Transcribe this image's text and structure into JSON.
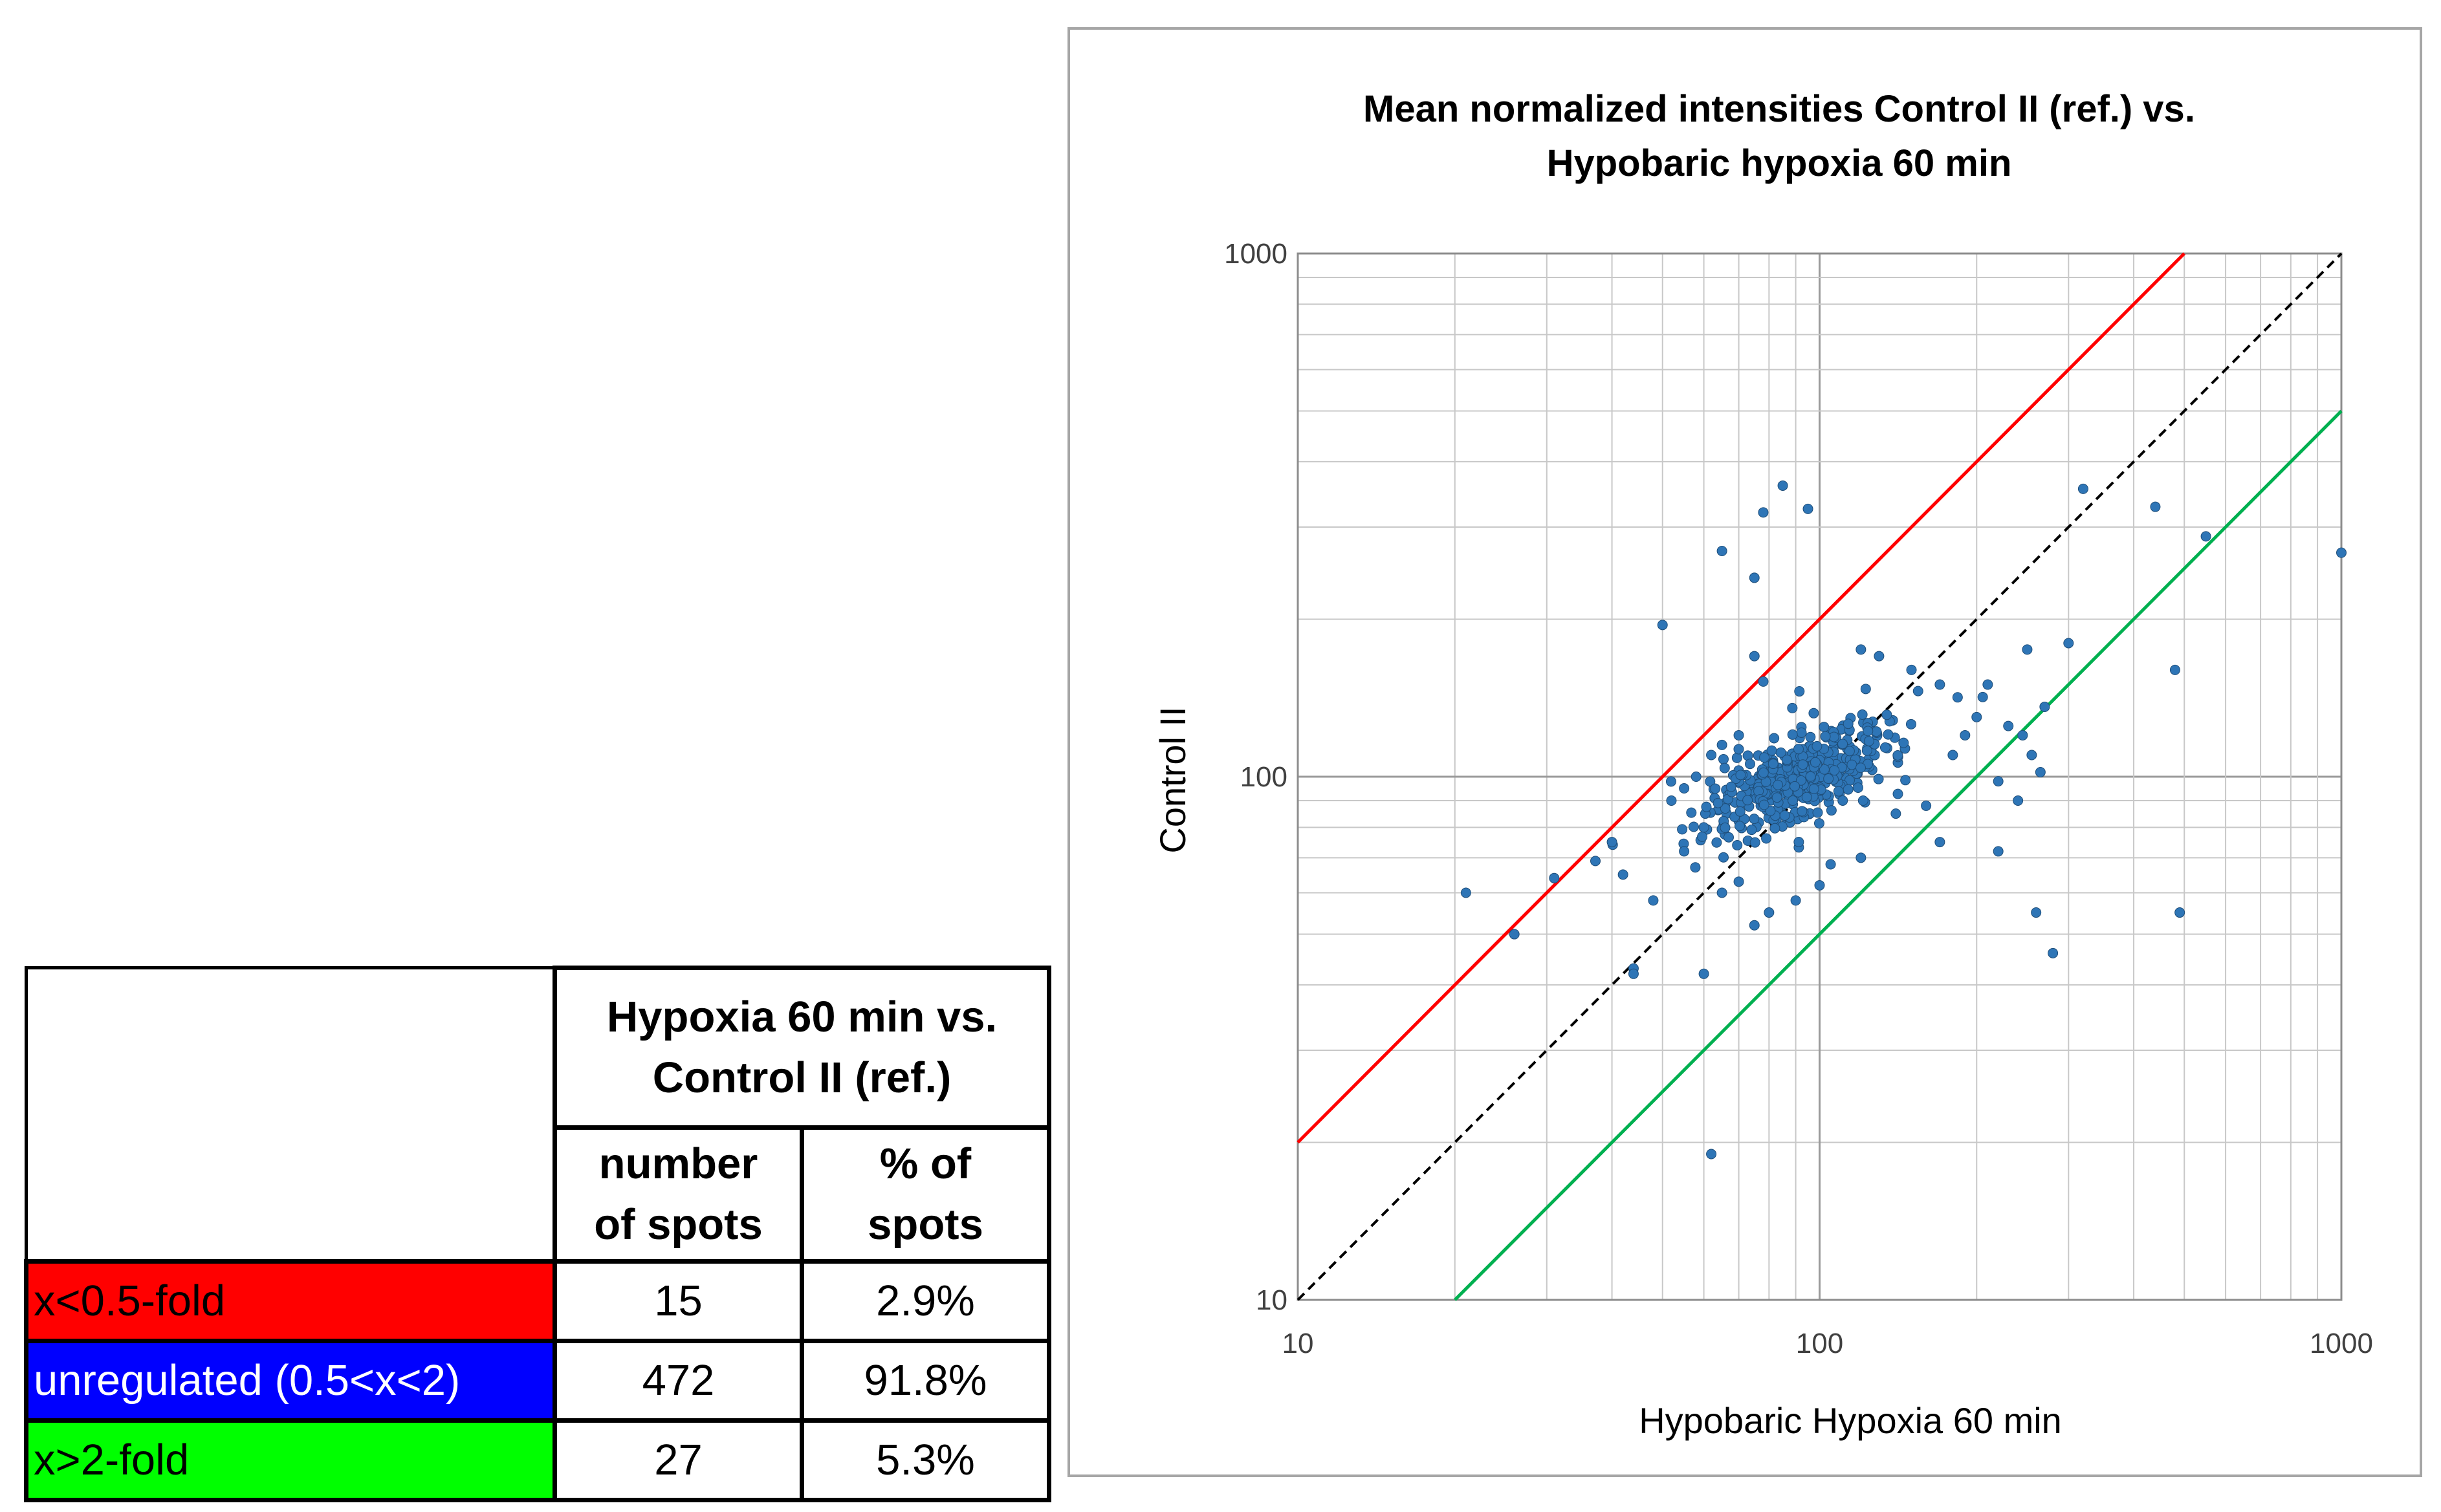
{
  "table": {
    "group_header": "Hypoxia 60 min vs. Control II (ref.)",
    "group_header_lines": [
      "Hypoxia 60 min vs.",
      "Control II (ref.)"
    ],
    "col_number_lines": [
      "number",
      "of spots"
    ],
    "col_percent_lines": [
      "% of",
      "spots"
    ],
    "rows": [
      {
        "label": "x<0.5-fold",
        "count": "15",
        "percent": "2.9%",
        "color": "#ff0000",
        "text_color": "#000000"
      },
      {
        "label": "unregulated (0.5<x<2)",
        "count": "472",
        "percent": "91.8%",
        "color": "#0000ff",
        "text_color": "#ffffff"
      },
      {
        "label": "x>2-fold",
        "count": "27",
        "percent": "5.3%",
        "color": "#00ff00",
        "text_color": "#000000"
      }
    ]
  },
  "chart_data": {
    "type": "scatter",
    "title_lines": [
      "Mean normalized intensities Control II (ref.)  vs.",
      "Hypobaric hypoxia 60 min"
    ],
    "xlabel": "Hypobaric Hypoxia 60 min",
    "ylabel": "Control II",
    "xscale": "log",
    "yscale": "log",
    "xlim": [
      10,
      1000
    ],
    "ylim": [
      10,
      1000
    ],
    "xticks": [
      "10",
      "100",
      "1000"
    ],
    "yticks": [
      "10",
      "100",
      "1000"
    ],
    "grid": true,
    "point_color": "#2e75b6",
    "reference_lines": [
      {
        "name": "2-fold up (y = 2x)",
        "color": "#ff0000",
        "dash": false,
        "x": [
          10,
          500
        ],
        "y": [
          20,
          1000
        ]
      },
      {
        "name": "identity (y = x)",
        "color": "#000000",
        "dash": true,
        "x": [
          10,
          1000
        ],
        "y": [
          10,
          1000
        ]
      },
      {
        "name": "2-fold down (y = 0.5x)",
        "color": "#00b050",
        "dash": false,
        "x": [
          20,
          1000
        ],
        "y": [
          10,
          500
        ]
      }
    ],
    "outliers": [
      [
        21,
        60
      ],
      [
        26,
        50
      ],
      [
        31,
        64
      ],
      [
        44,
        43
      ],
      [
        44,
        42
      ],
      [
        48,
        58
      ],
      [
        50,
        195
      ],
      [
        60,
        42
      ],
      [
        62,
        19
      ],
      [
        65,
        270
      ],
      [
        75,
        240
      ],
      [
        78,
        320
      ],
      [
        85,
        360
      ],
      [
        95,
        325
      ],
      [
        320,
        355
      ],
      [
        440,
        328
      ],
      [
        550,
        288
      ],
      [
        1000,
        268
      ],
      [
        480,
        160
      ],
      [
        490,
        55
      ],
      [
        260,
        55
      ],
      [
        280,
        46
      ],
      [
        220,
        72
      ],
      [
        300,
        180
      ],
      [
        250,
        175
      ],
      [
        270,
        136
      ],
      [
        40,
        75
      ],
      [
        42,
        65
      ],
      [
        55,
        72
      ],
      [
        60,
        80
      ],
      [
        65,
        60
      ],
      [
        70,
        63
      ],
      [
        75,
        170
      ],
      [
        78,
        152
      ],
      [
        120,
        175
      ],
      [
        130,
        170
      ],
      [
        150,
        160
      ],
      [
        170,
        150
      ],
      [
        210,
        150
      ],
      [
        230,
        125
      ],
      [
        240,
        90
      ],
      [
        220,
        98
      ],
      [
        180,
        110
      ],
      [
        160,
        88
      ],
      [
        140,
        85
      ],
      [
        120,
        70
      ],
      [
        105,
        68
      ],
      [
        100,
        62
      ],
      [
        90,
        58
      ],
      [
        80,
        55
      ],
      [
        75,
        52
      ],
      [
        70,
        120
      ],
      [
        65,
        115
      ],
      [
        62,
        110
      ],
      [
        58,
        100
      ],
      [
        55,
        95
      ],
      [
        52,
        90
      ],
      [
        200,
        130
      ],
      [
        190,
        120
      ],
      [
        245,
        120
      ],
      [
        255,
        110
      ],
      [
        265,
        102
      ],
      [
        170,
        75
      ]
    ],
    "cluster": {
      "n_points": 440,
      "center": [
        92,
        100
      ],
      "log_spread": 0.085,
      "seed": 7
    }
  }
}
